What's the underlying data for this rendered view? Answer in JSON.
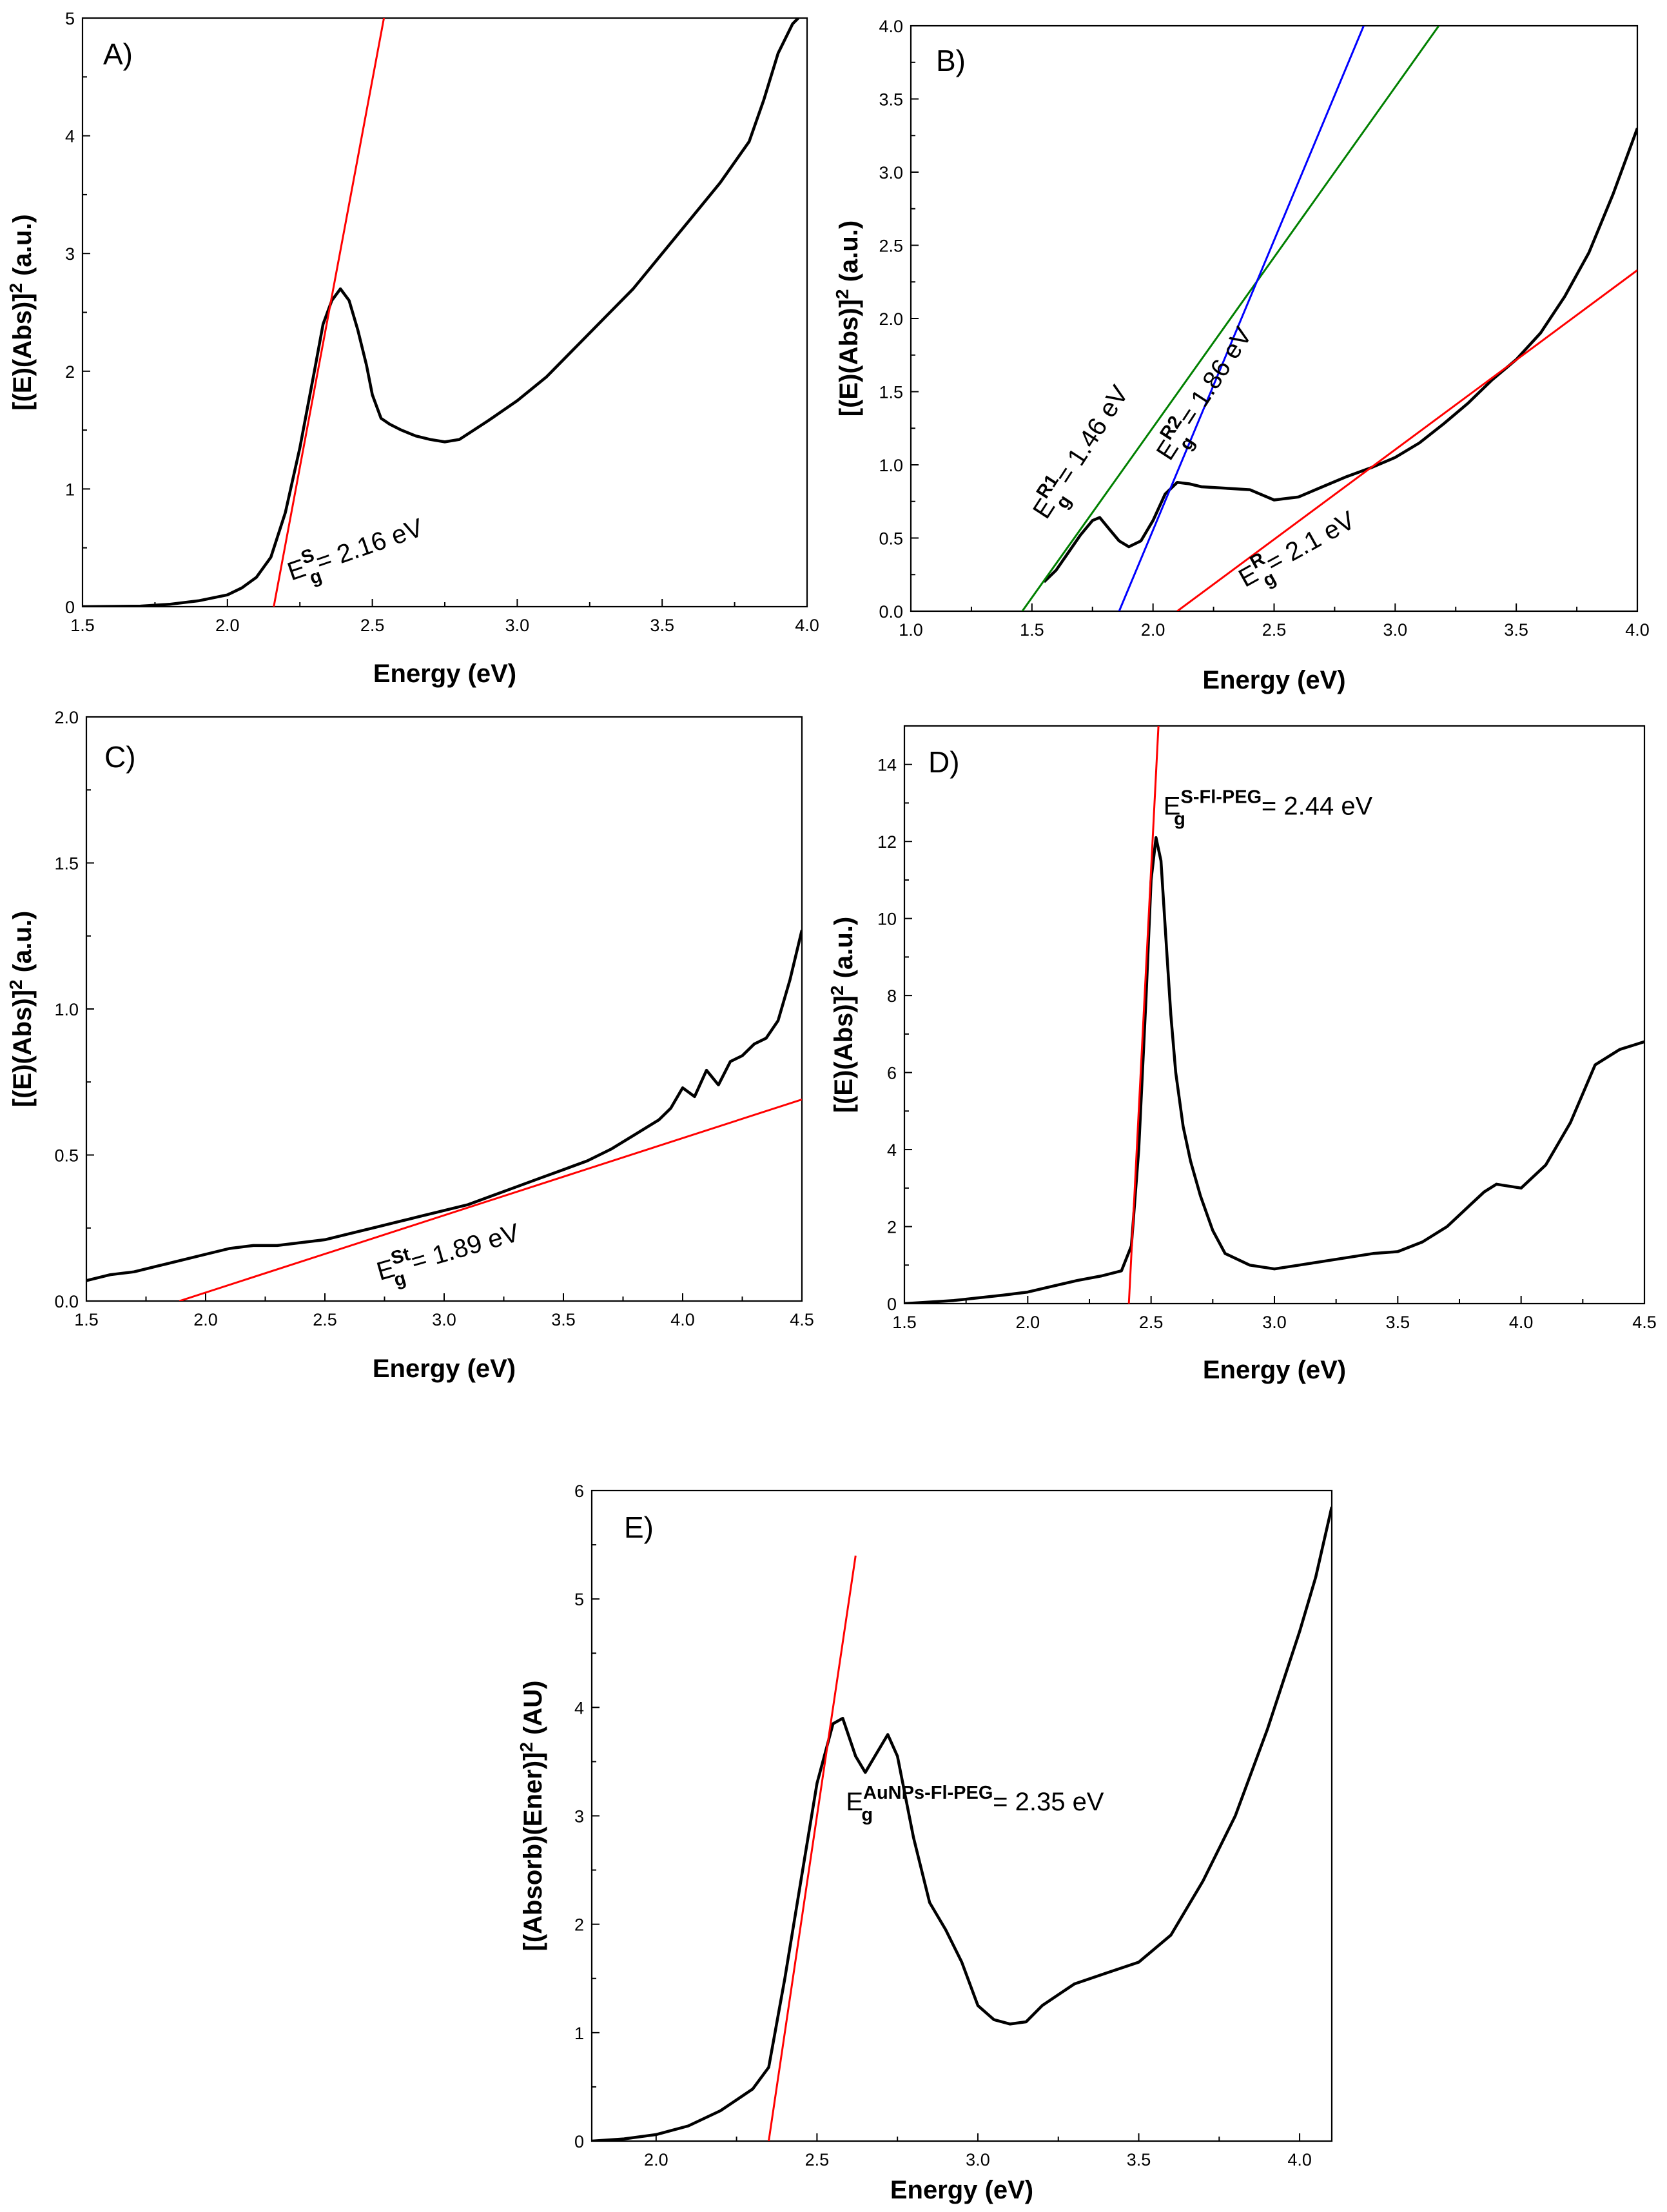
{
  "chart_data": [
    {
      "type": "line",
      "panel_label": "A)",
      "xlabel": "Energy (eV)",
      "ylabel": "[(E)(Abs)]² (a.u.)",
      "xlim": [
        1.5,
        4.0
      ],
      "ylim": [
        0,
        5
      ],
      "xticks": [
        "1.5",
        "2.0",
        "2.5",
        "3.0",
        "3.5",
        "4.0"
      ],
      "yticks": [
        "0",
        "1",
        "2",
        "3",
        "4",
        "5"
      ],
      "series": [
        {
          "color": "#000000",
          "x": [
            1.5,
            1.7,
            1.8,
            1.9,
            2.0,
            2.05,
            2.1,
            2.15,
            2.2,
            2.25,
            2.3,
            2.33,
            2.36,
            2.39,
            2.42,
            2.45,
            2.48,
            2.5,
            2.53,
            2.56,
            2.6,
            2.65,
            2.7,
            2.75,
            2.8,
            2.85,
            2.9,
            3.0,
            3.1,
            3.2,
            3.3,
            3.4,
            3.5,
            3.6,
            3.7,
            3.8,
            3.85,
            3.9,
            3.95,
            3.97
          ],
          "y": [
            0,
            0.005,
            0.02,
            0.05,
            0.1,
            0.16,
            0.25,
            0.42,
            0.8,
            1.35,
            2.0,
            2.4,
            2.6,
            2.7,
            2.6,
            2.35,
            2.05,
            1.8,
            1.6,
            1.55,
            1.5,
            1.45,
            1.42,
            1.4,
            1.42,
            1.5,
            1.58,
            1.75,
            1.95,
            2.2,
            2.45,
            2.7,
            3.0,
            3.3,
            3.6,
            3.95,
            4.3,
            4.7,
            4.95,
            5.0
          ]
        },
        {
          "color": "#ff0000",
          "x": [
            2.16,
            2.54
          ],
          "y": [
            0,
            5
          ]
        }
      ],
      "annotations": [
        {
          "text": "E",
          "sub": "g",
          "sup": "S",
          "rest": "= 2.16 eV"
        }
      ]
    },
    {
      "type": "line",
      "panel_label": "B)",
      "xlabel": "Energy (eV)",
      "ylabel": "[(E)(Abs)]² (a.u.)",
      "xlim": [
        1.0,
        4.0
      ],
      "ylim": [
        0.0,
        4.0
      ],
      "xticks": [
        "1.0",
        "1.5",
        "2.0",
        "2.5",
        "3.0",
        "3.5",
        "4.0"
      ],
      "yticks": [
        "0.0",
        "0.5",
        "1.0",
        "1.5",
        "2.0",
        "2.5",
        "3.0",
        "3.5",
        "4.0"
      ],
      "series": [
        {
          "color": "#000000",
          "x": [
            1.55,
            1.6,
            1.65,
            1.7,
            1.75,
            1.78,
            1.82,
            1.86,
            1.9,
            1.95,
            2.0,
            2.05,
            2.1,
            2.15,
            2.2,
            2.3,
            2.4,
            2.5,
            2.6,
            2.7,
            2.8,
            2.9,
            3.0,
            3.1,
            3.2,
            3.3,
            3.4,
            3.5,
            3.6,
            3.7,
            3.8,
            3.9,
            4.0
          ],
          "y": [
            0.2,
            0.28,
            0.4,
            0.52,
            0.62,
            0.64,
            0.56,
            0.48,
            0.44,
            0.48,
            0.62,
            0.8,
            0.88,
            0.87,
            0.85,
            0.84,
            0.83,
            0.76,
            0.78,
            0.85,
            0.92,
            0.98,
            1.05,
            1.15,
            1.28,
            1.42,
            1.58,
            1.72,
            1.9,
            2.15,
            2.45,
            2.85,
            3.3
          ]
        },
        {
          "color": "#008000",
          "x": [
            1.46,
            3.18
          ],
          "y": [
            0,
            4.0
          ]
        },
        {
          "color": "#0000ff",
          "x": [
            1.86,
            2.87
          ],
          "y": [
            0,
            4.0
          ]
        },
        {
          "color": "#ff0000",
          "x": [
            2.1,
            4.0
          ],
          "y": [
            0,
            2.33
          ]
        }
      ],
      "annotations": [
        {
          "text": "E",
          "sub": "g",
          "sup": "R1",
          "rest": "= 1.46 eV"
        },
        {
          "text": "E",
          "sub": "g",
          "sup": "R2",
          "rest": "= 1.86 eV"
        },
        {
          "text": "E",
          "sub": "g",
          "sup": "R",
          "rest": "= 2.1 eV"
        }
      ]
    },
    {
      "type": "line",
      "panel_label": "C)",
      "xlabel": "Energy (eV)",
      "ylabel": "[(E)(Abs)]² (a.u.)",
      "xlim": [
        1.5,
        4.5
      ],
      "ylim": [
        0.0,
        2.0
      ],
      "xticks": [
        "1.5",
        "2.0",
        "2.5",
        "3.0",
        "3.5",
        "4.0",
        "4.5"
      ],
      "yticks": [
        "0.0",
        "0.5",
        "1.0",
        "1.5",
        "2.0"
      ],
      "series": [
        {
          "color": "#000000",
          "x": [
            1.5,
            1.6,
            1.7,
            1.8,
            1.9,
            2.0,
            2.1,
            2.2,
            2.3,
            2.4,
            2.5,
            2.6,
            2.7,
            2.8,
            2.9,
            3.0,
            3.1,
            3.2,
            3.3,
            3.4,
            3.5,
            3.6,
            3.7,
            3.8,
            3.9,
            3.95,
            4.0,
            4.05,
            4.1,
            4.15,
            4.2,
            4.25,
            4.3,
            4.35,
            4.4,
            4.45,
            4.5
          ],
          "y": [
            0.07,
            0.09,
            0.1,
            0.12,
            0.14,
            0.16,
            0.18,
            0.19,
            0.19,
            0.2,
            0.21,
            0.23,
            0.25,
            0.27,
            0.29,
            0.31,
            0.33,
            0.36,
            0.39,
            0.42,
            0.45,
            0.48,
            0.52,
            0.57,
            0.62,
            0.66,
            0.73,
            0.7,
            0.79,
            0.74,
            0.82,
            0.84,
            0.88,
            0.9,
            0.96,
            1.1,
            1.27
          ]
        },
        {
          "color": "#ff0000",
          "x": [
            1.89,
            4.5
          ],
          "y": [
            0,
            0.69
          ]
        }
      ],
      "annotations": [
        {
          "text": "E",
          "sub": "g",
          "sup": "St",
          "rest": "= 1.89 eV"
        }
      ]
    },
    {
      "type": "line",
      "panel_label": "D)",
      "xlabel": "Energy (eV)",
      "ylabel": "[(E)(Abs)]² (a.u.)",
      "xlim": [
        1.5,
        4.5
      ],
      "ylim": [
        0,
        15
      ],
      "xticks": [
        "1.5",
        "2.0",
        "2.5",
        "3.0",
        "3.5",
        "4.0",
        "4.5"
      ],
      "yticks": [
        "0",
        "2",
        "4",
        "6",
        "8",
        "10",
        "12",
        "14"
      ],
      "series": [
        {
          "color": "#000000",
          "x": [
            1.5,
            1.7,
            1.9,
            2.0,
            2.1,
            2.2,
            2.3,
            2.38,
            2.42,
            2.45,
            2.48,
            2.5,
            2.52,
            2.54,
            2.56,
            2.58,
            2.6,
            2.63,
            2.66,
            2.7,
            2.75,
            2.8,
            2.9,
            3.0,
            3.1,
            3.2,
            3.3,
            3.4,
            3.5,
            3.6,
            3.7,
            3.8,
            3.85,
            3.9,
            3.95,
            4.0,
            4.1,
            4.2,
            4.3,
            4.4,
            4.5
          ],
          "y": [
            0,
            0.08,
            0.22,
            0.3,
            0.45,
            0.6,
            0.72,
            0.85,
            1.5,
            4.0,
            8.0,
            11.0,
            12.1,
            11.5,
            9.5,
            7.5,
            6.0,
            4.6,
            3.7,
            2.8,
            1.9,
            1.3,
            1.0,
            0.9,
            1.0,
            1.1,
            1.2,
            1.3,
            1.35,
            1.6,
            2.0,
            2.6,
            2.9,
            3.1,
            3.05,
            3.0,
            3.6,
            4.7,
            6.2,
            6.6,
            6.8
          ]
        },
        {
          "color": "#ff0000",
          "x": [
            2.41,
            2.53
          ],
          "y": [
            0,
            15
          ]
        }
      ],
      "annotations": [
        {
          "text": "E",
          "sub": "g",
          "sup": "S-Fl-PEG",
          "rest": "= 2.44 eV"
        }
      ]
    },
    {
      "type": "line",
      "panel_label": "E)",
      "xlabel": "Energy (eV)",
      "ylabel": "[(Absorb)(Ener)]² (AU)",
      "xlim": [
        1.8,
        4.1
      ],
      "ylim": [
        0,
        6
      ],
      "xticks": [
        "2.0",
        "2.5",
        "3.0",
        "3.5",
        "4.0"
      ],
      "yticks": [
        "0",
        "1",
        "2",
        "3",
        "4",
        "5",
        "6"
      ],
      "series": [
        {
          "color": "#000000",
          "x": [
            1.8,
            1.9,
            2.0,
            2.1,
            2.2,
            2.3,
            2.35,
            2.4,
            2.45,
            2.5,
            2.55,
            2.58,
            2.62,
            2.65,
            2.68,
            2.72,
            2.75,
            2.8,
            2.85,
            2.9,
            2.95,
            3.0,
            3.05,
            3.1,
            3.15,
            3.2,
            3.3,
            3.4,
            3.5,
            3.6,
            3.7,
            3.8,
            3.9,
            4.0,
            4.05,
            4.1
          ],
          "y": [
            0,
            0.02,
            0.06,
            0.14,
            0.28,
            0.48,
            0.68,
            1.5,
            2.4,
            3.3,
            3.85,
            3.9,
            3.55,
            3.4,
            3.55,
            3.75,
            3.55,
            2.8,
            2.2,
            1.95,
            1.65,
            1.25,
            1.12,
            1.08,
            1.1,
            1.25,
            1.45,
            1.55,
            1.65,
            1.9,
            2.4,
            3.0,
            3.8,
            4.7,
            5.2,
            5.85
          ]
        },
        {
          "color": "#ff0000",
          "x": [
            2.35,
            2.62
          ],
          "y": [
            0,
            5.4
          ]
        }
      ],
      "annotations": [
        {
          "text": "E",
          "sub": "g",
          "sup": "AuNPs-Fl-PEG",
          "rest": "= 2.35 eV"
        }
      ]
    }
  ]
}
